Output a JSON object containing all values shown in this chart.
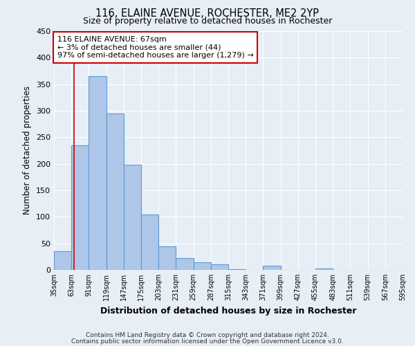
{
  "title": "116, ELAINE AVENUE, ROCHESTER, ME2 2YP",
  "subtitle": "Size of property relative to detached houses in Rochester",
  "xlabel": "Distribution of detached houses by size in Rochester",
  "ylabel": "Number of detached properties",
  "bar_heights": [
    35,
    235,
    365,
    295,
    198,
    105,
    45,
    22,
    15,
    10,
    1,
    0,
    8,
    0,
    0,
    2,
    0,
    0,
    0,
    0
  ],
  "bin_edges": [
    35,
    63,
    91,
    119,
    147,
    175,
    203,
    231,
    259,
    287,
    315,
    343,
    371,
    399,
    427,
    455,
    483,
    511,
    539,
    567,
    595
  ],
  "ylim": [
    0,
    450
  ],
  "yticks": [
    0,
    50,
    100,
    150,
    200,
    250,
    300,
    350,
    400,
    450
  ],
  "bar_color": "#aec6e8",
  "bar_edge_color": "#5b9bd5",
  "vline_x": 67,
  "vline_color": "#cc0000",
  "annotation_title": "116 ELAINE AVENUE: 67sqm",
  "annotation_line1": "← 3% of detached houses are smaller (44)",
  "annotation_line2": "97% of semi-detached houses are larger (1,279) →",
  "annotation_box_color": "#ffffff",
  "annotation_box_edge": "#cc0000",
  "footer1": "Contains HM Land Registry data © Crown copyright and database right 2024.",
  "footer2": "Contains public sector information licensed under the Open Government Licence v3.0.",
  "bg_color": "#e8eef6",
  "grid_color": "#ffffff"
}
